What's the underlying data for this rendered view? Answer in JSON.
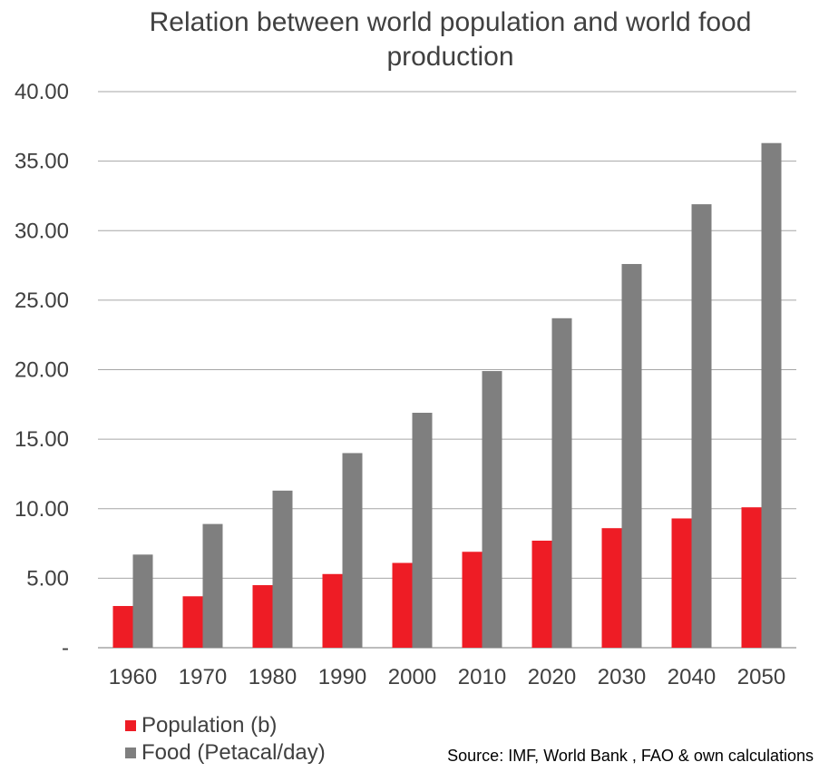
{
  "chart_data": {
    "type": "bar",
    "title_lines": [
      "Relation between world population and world food",
      "production"
    ],
    "categories": [
      "1960",
      "1970",
      "1980",
      "1990",
      "2000",
      "2010",
      "2020",
      "2030",
      "2040",
      "2050"
    ],
    "series": [
      {
        "name": "Population (b)",
        "color": "#ee1c25",
        "values": [
          3.0,
          3.7,
          4.5,
          5.3,
          6.1,
          6.9,
          7.7,
          8.6,
          9.3,
          10.1
        ]
      },
      {
        "name": "Food (Petacal/day)",
        "color": "#7f7f7f",
        "values": [
          6.7,
          8.9,
          11.3,
          14.0,
          16.9,
          19.9,
          23.7,
          27.6,
          31.9,
          36.3
        ]
      }
    ],
    "yticks": [
      "-",
      "5.00",
      "10.00",
      "15.00",
      "20.00",
      "25.00",
      "30.00",
      "35.00",
      "40.00"
    ],
    "ylim": [
      0,
      40
    ],
    "grid": true,
    "legend_position": "bottom-left",
    "source": "Source: IMF,  World Bank , FAO & own calculations"
  }
}
